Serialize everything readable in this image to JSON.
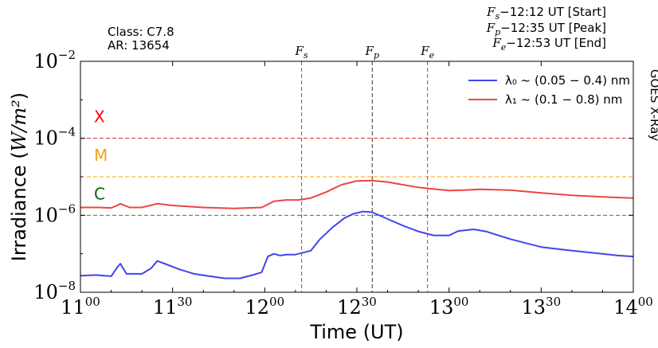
{
  "chart_data": {
    "type": "line",
    "title": "",
    "xlabel": "Time (UT)",
    "ylabel": "Irradiance (W/m²)",
    "yscale": "log",
    "ylim": [
      1e-08,
      0.01
    ],
    "xlim": [
      "11:00",
      "14:00"
    ],
    "x_ticks": [
      {
        "t": "11:00",
        "hour": "11",
        "min": "00"
      },
      {
        "t": "11:30",
        "hour": "11",
        "min": "30"
      },
      {
        "t": "12:00",
        "hour": "12",
        "min": "00"
      },
      {
        "t": "12:30",
        "hour": "12",
        "min": "30"
      },
      {
        "t": "13:00",
        "hour": "13",
        "min": "00"
      },
      {
        "t": "13:30",
        "hour": "13",
        "min": "30"
      },
      {
        "t": "14:00",
        "hour": "14",
        "min": "00"
      }
    ],
    "y_ticks": [
      {
        "value": 1e-08,
        "base": "10",
        "exp": "−8"
      },
      {
        "value": 1e-06,
        "base": "10",
        "exp": "−6"
      },
      {
        "value": 0.0001,
        "base": "10",
        "exp": "−4"
      },
      {
        "value": 0.01,
        "base": "10",
        "exp": "−2"
      }
    ],
    "flare_info": {
      "class_text": "Class:  C7.8",
      "ar_text": "AR: 13654",
      "start_text": "F_s−12:12 UT [Start]",
      "peak_text": "F_p−12:35 UT [Peak]",
      "end_text": "F_e−12:53 UT [End]"
    },
    "markers": [
      {
        "label": "F_s",
        "time": "12:12",
        "color": "#e03030"
      },
      {
        "label": "F_p",
        "time": "12:35",
        "color": "#333333"
      },
      {
        "label": "F_e",
        "time": "12:53",
        "color": "#e03030"
      }
    ],
    "class_thresholds": [
      {
        "label": "X",
        "value": 0.0001,
        "color": "#ff0000",
        "line_color": "#d62728"
      },
      {
        "label": "M",
        "value": 1e-05,
        "color": "#f0a020",
        "line_color": "#ffa500"
      },
      {
        "label": "C",
        "value": 1e-06,
        "color": "#006400",
        "line_color": "#2e8b2e"
      }
    ],
    "side_label": "GOES X-Ray",
    "legend_position": "upper-right",
    "series": [
      {
        "name": "λ₀ ~ (0.05 − 0.4) nm",
        "color": "#4444ee",
        "x": [
          "11:00",
          "11:05",
          "11:08",
          "11:10",
          "11:12",
          "11:13",
          "11:15",
          "11:20",
          "11:23",
          "11:25",
          "11:27",
          "11:32",
          "11:37",
          "11:41",
          "11:47",
          "11:52",
          "11:56",
          "11:59",
          "12:01",
          "12:03",
          "12:05",
          "12:07",
          "12:10",
          "12:15",
          "12:18",
          "12:22",
          "12:26",
          "12:29",
          "12:32",
          "12:35",
          "12:40",
          "12:45",
          "12:50",
          "12:55",
          "13:00",
          "13:03",
          "13:08",
          "13:12",
          "13:20",
          "13:30",
          "13:40",
          "13:50",
          "13:55",
          "14:00"
        ],
        "y": [
          2.7e-08,
          2.8e-08,
          2.7e-08,
          2.6e-08,
          4.5e-08,
          5.5e-08,
          3e-08,
          3e-08,
          4.2e-08,
          6.5e-08,
          5.7e-08,
          4e-08,
          3e-08,
          2.7e-08,
          2.3e-08,
          2.3e-08,
          2.8e-08,
          3.3e-08,
          8.5e-08,
          1e-07,
          9e-08,
          9.5e-08,
          9.5e-08,
          1.2e-07,
          2.4e-07,
          4.8e-07,
          8.5e-07,
          1.1e-06,
          1.25e-06,
          1.2e-06,
          8e-07,
          5.4e-07,
          3.8e-07,
          3e-07,
          3e-07,
          3.9e-07,
          4.3e-07,
          3.8e-07,
          2.4e-07,
          1.5e-07,
          1.2e-07,
          1e-07,
          9e-08,
          8.5e-08
        ]
      },
      {
        "name": "λ₁ ~ (0.1 − 0.8) nm",
        "color": "#ee4444",
        "x": [
          "11:00",
          "11:06",
          "11:10",
          "11:12",
          "11:13",
          "11:16",
          "11:20",
          "11:25",
          "11:30",
          "11:40",
          "11:50",
          "11:59",
          "12:03",
          "12:07",
          "12:11",
          "12:15",
          "12:20",
          "12:25",
          "12:30",
          "12:35",
          "12:40",
          "12:45",
          "12:50",
          "12:55",
          "13:00",
          "13:05",
          "13:10",
          "13:20",
          "13:30",
          "13:40",
          "13:50",
          "14:00"
        ],
        "y": [
          1.6e-06,
          1.6e-06,
          1.55e-06,
          1.8e-06,
          2e-06,
          1.6e-06,
          1.6e-06,
          2e-06,
          1.8e-06,
          1.6e-06,
          1.5e-06,
          1.6e-06,
          2.3e-06,
          2.5e-06,
          2.5e-06,
          2.8e-06,
          4e-06,
          6.2e-06,
          7.8e-06,
          8e-06,
          7.3e-06,
          6.2e-06,
          5.3e-06,
          4.8e-06,
          4.4e-06,
          4.5e-06,
          4.7e-06,
          4.5e-06,
          3.8e-06,
          3.3e-06,
          3e-06,
          2.8e-06
        ]
      }
    ]
  }
}
